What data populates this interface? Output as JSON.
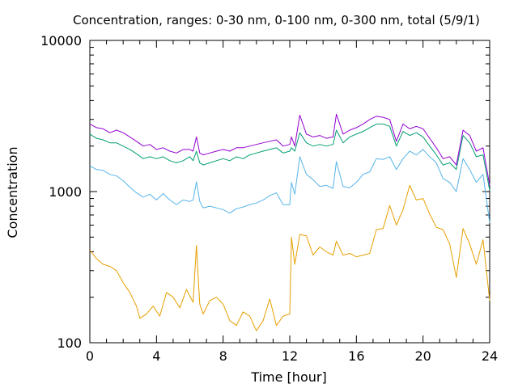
{
  "chart_data": {
    "type": "line",
    "title": "Concentration, ranges: 0-30 nm, 0-100 nm, 0-300 nm, total (5/9/1)",
    "xlabel": "Time [hour]",
    "ylabel": "Concentration",
    "xlim": [
      0,
      24
    ],
    "ylim": [
      100,
      10000
    ],
    "yscale": "log",
    "grid": false,
    "legend": "none",
    "xticks": [
      0,
      4,
      8,
      12,
      16,
      20,
      24
    ],
    "xtick_labels": [
      "0",
      "4",
      "8",
      "12",
      "16",
      "20",
      "24"
    ],
    "yticks": [
      100,
      1000,
      10000
    ],
    "ytick_labels": [
      "100",
      "1000",
      "10000"
    ],
    "series": [
      {
        "color": "#e69f00",
        "points": [
          [
            0,
            410
          ],
          [
            0.4,
            360
          ],
          [
            0.8,
            330
          ],
          [
            1.2,
            320
          ],
          [
            1.6,
            300
          ],
          [
            2.0,
            250
          ],
          [
            2.4,
            215
          ],
          [
            2.8,
            175
          ],
          [
            3.0,
            145
          ],
          [
            3.4,
            155
          ],
          [
            3.8,
            175
          ],
          [
            4.2,
            150
          ],
          [
            4.6,
            215
          ],
          [
            5.0,
            200
          ],
          [
            5.4,
            170
          ],
          [
            5.8,
            225
          ],
          [
            6.2,
            185
          ],
          [
            6.4,
            440
          ],
          [
            6.6,
            180
          ],
          [
            6.8,
            155
          ],
          [
            7.2,
            190
          ],
          [
            7.6,
            200
          ],
          [
            8.0,
            180
          ],
          [
            8.4,
            140
          ],
          [
            8.8,
            130
          ],
          [
            9.2,
            160
          ],
          [
            9.6,
            150
          ],
          [
            10.0,
            120
          ],
          [
            10.4,
            140
          ],
          [
            10.8,
            195
          ],
          [
            11.2,
            130
          ],
          [
            11.6,
            150
          ],
          [
            12.0,
            155
          ],
          [
            12.1,
            500
          ],
          [
            12.3,
            330
          ],
          [
            12.6,
            520
          ],
          [
            13.0,
            510
          ],
          [
            13.4,
            380
          ],
          [
            13.8,
            430
          ],
          [
            14.2,
            400
          ],
          [
            14.6,
            380
          ],
          [
            14.8,
            470
          ],
          [
            15.2,
            380
          ],
          [
            15.6,
            390
          ],
          [
            16.0,
            370
          ],
          [
            16.4,
            380
          ],
          [
            16.8,
            390
          ],
          [
            17.2,
            560
          ],
          [
            17.6,
            570
          ],
          [
            18.0,
            810
          ],
          [
            18.4,
            600
          ],
          [
            18.8,
            760
          ],
          [
            19.2,
            1100
          ],
          [
            19.6,
            880
          ],
          [
            20.0,
            900
          ],
          [
            20.4,
            710
          ],
          [
            20.8,
            580
          ],
          [
            21.2,
            560
          ],
          [
            21.6,
            450
          ],
          [
            22.0,
            270
          ],
          [
            22.4,
            570
          ],
          [
            22.8,
            450
          ],
          [
            23.2,
            330
          ],
          [
            23.6,
            480
          ],
          [
            24.0,
            190
          ]
        ]
      },
      {
        "color": "#56b4e9",
        "points": [
          [
            0,
            1480
          ],
          [
            0.4,
            1400
          ],
          [
            0.8,
            1380
          ],
          [
            1.2,
            1300
          ],
          [
            1.6,
            1270
          ],
          [
            2.0,
            1180
          ],
          [
            2.4,
            1070
          ],
          [
            2.8,
            980
          ],
          [
            3.2,
            920
          ],
          [
            3.6,
            960
          ],
          [
            4.0,
            880
          ],
          [
            4.4,
            970
          ],
          [
            4.8,
            880
          ],
          [
            5.2,
            820
          ],
          [
            5.6,
            880
          ],
          [
            6.0,
            860
          ],
          [
            6.2,
            880
          ],
          [
            6.4,
            1160
          ],
          [
            6.6,
            860
          ],
          [
            6.8,
            780
          ],
          [
            7.2,
            800
          ],
          [
            7.6,
            780
          ],
          [
            8.0,
            760
          ],
          [
            8.4,
            720
          ],
          [
            8.8,
            770
          ],
          [
            9.2,
            790
          ],
          [
            9.6,
            820
          ],
          [
            10.0,
            840
          ],
          [
            10.4,
            880
          ],
          [
            10.8,
            940
          ],
          [
            11.2,
            980
          ],
          [
            11.6,
            820
          ],
          [
            12.0,
            820
          ],
          [
            12.1,
            1150
          ],
          [
            12.3,
            960
          ],
          [
            12.6,
            1700
          ],
          [
            13.0,
            1300
          ],
          [
            13.4,
            1200
          ],
          [
            13.8,
            1080
          ],
          [
            14.2,
            1100
          ],
          [
            14.6,
            1050
          ],
          [
            14.8,
            1580
          ],
          [
            15.2,
            1080
          ],
          [
            15.6,
            1060
          ],
          [
            16.0,
            1150
          ],
          [
            16.4,
            1300
          ],
          [
            16.8,
            1350
          ],
          [
            17.2,
            1650
          ],
          [
            17.6,
            1630
          ],
          [
            18.0,
            1700
          ],
          [
            18.4,
            1400
          ],
          [
            18.8,
            1650
          ],
          [
            19.2,
            1850
          ],
          [
            19.6,
            1750
          ],
          [
            20.0,
            1900
          ],
          [
            20.4,
            1700
          ],
          [
            20.8,
            1550
          ],
          [
            21.2,
            1220
          ],
          [
            21.6,
            1150
          ],
          [
            22.0,
            1000
          ],
          [
            22.4,
            1650
          ],
          [
            22.8,
            1400
          ],
          [
            23.2,
            1150
          ],
          [
            23.6,
            1300
          ],
          [
            24.0,
            620
          ]
        ]
      },
      {
        "color": "#009e73",
        "points": [
          [
            0,
            2400
          ],
          [
            0.4,
            2250
          ],
          [
            0.8,
            2200
          ],
          [
            1.2,
            2100
          ],
          [
            1.6,
            2100
          ],
          [
            2.0,
            2000
          ],
          [
            2.4,
            1900
          ],
          [
            2.8,
            1780
          ],
          [
            3.2,
            1650
          ],
          [
            3.6,
            1700
          ],
          [
            4.0,
            1650
          ],
          [
            4.4,
            1700
          ],
          [
            4.8,
            1600
          ],
          [
            5.2,
            1550
          ],
          [
            5.6,
            1600
          ],
          [
            6.0,
            1700
          ],
          [
            6.2,
            1600
          ],
          [
            6.4,
            1850
          ],
          [
            6.6,
            1550
          ],
          [
            6.8,
            1500
          ],
          [
            7.2,
            1550
          ],
          [
            7.6,
            1600
          ],
          [
            8.0,
            1650
          ],
          [
            8.4,
            1600
          ],
          [
            8.8,
            1700
          ],
          [
            9.2,
            1650
          ],
          [
            9.6,
            1750
          ],
          [
            10.0,
            1800
          ],
          [
            10.4,
            1850
          ],
          [
            10.8,
            1900
          ],
          [
            11.2,
            1950
          ],
          [
            11.6,
            1800
          ],
          [
            12.0,
            1850
          ],
          [
            12.1,
            1950
          ],
          [
            12.3,
            1850
          ],
          [
            12.6,
            2450
          ],
          [
            13.0,
            2100
          ],
          [
            13.4,
            2000
          ],
          [
            13.8,
            2050
          ],
          [
            14.2,
            2000
          ],
          [
            14.6,
            2050
          ],
          [
            14.8,
            2550
          ],
          [
            15.2,
            2100
          ],
          [
            15.6,
            2300
          ],
          [
            16.0,
            2400
          ],
          [
            16.4,
            2500
          ],
          [
            16.8,
            2650
          ],
          [
            17.2,
            2800
          ],
          [
            17.6,
            2800
          ],
          [
            18.0,
            2700
          ],
          [
            18.4,
            2000
          ],
          [
            18.8,
            2500
          ],
          [
            19.2,
            2350
          ],
          [
            19.6,
            2450
          ],
          [
            20.0,
            2300
          ],
          [
            20.4,
            2000
          ],
          [
            20.8,
            1750
          ],
          [
            21.2,
            1500
          ],
          [
            21.6,
            1550
          ],
          [
            22.0,
            1400
          ],
          [
            22.4,
            2350
          ],
          [
            22.8,
            2100
          ],
          [
            23.2,
            1700
          ],
          [
            23.6,
            1750
          ],
          [
            24.0,
            1020
          ]
        ]
      },
      {
        "color": "#9400d3",
        "points": [
          [
            0,
            2800
          ],
          [
            0.4,
            2650
          ],
          [
            0.8,
            2600
          ],
          [
            1.2,
            2450
          ],
          [
            1.6,
            2550
          ],
          [
            2.0,
            2450
          ],
          [
            2.4,
            2300
          ],
          [
            2.8,
            2150
          ],
          [
            3.2,
            2000
          ],
          [
            3.6,
            2050
          ],
          [
            4.0,
            1900
          ],
          [
            4.4,
            1950
          ],
          [
            4.8,
            1850
          ],
          [
            5.2,
            1800
          ],
          [
            5.6,
            1900
          ],
          [
            6.0,
            1900
          ],
          [
            6.2,
            1850
          ],
          [
            6.4,
            2300
          ],
          [
            6.6,
            1800
          ],
          [
            6.8,
            1750
          ],
          [
            7.2,
            1800
          ],
          [
            7.6,
            1850
          ],
          [
            8.0,
            1900
          ],
          [
            8.4,
            1850
          ],
          [
            8.8,
            1950
          ],
          [
            9.2,
            1950
          ],
          [
            9.6,
            2000
          ],
          [
            10.0,
            2050
          ],
          [
            10.4,
            2100
          ],
          [
            10.8,
            2150
          ],
          [
            11.2,
            2200
          ],
          [
            11.6,
            2000
          ],
          [
            12.0,
            2050
          ],
          [
            12.1,
            2300
          ],
          [
            12.3,
            2000
          ],
          [
            12.6,
            3200
          ],
          [
            13.0,
            2400
          ],
          [
            13.4,
            2300
          ],
          [
            13.8,
            2350
          ],
          [
            14.2,
            2250
          ],
          [
            14.6,
            2300
          ],
          [
            14.8,
            3250
          ],
          [
            15.2,
            2400
          ],
          [
            15.6,
            2550
          ],
          [
            16.0,
            2650
          ],
          [
            16.4,
            2800
          ],
          [
            16.8,
            3000
          ],
          [
            17.2,
            3150
          ],
          [
            17.6,
            3100
          ],
          [
            18.0,
            3000
          ],
          [
            18.4,
            2150
          ],
          [
            18.8,
            2800
          ],
          [
            19.2,
            2600
          ],
          [
            19.6,
            2700
          ],
          [
            20.0,
            2600
          ],
          [
            20.4,
            2250
          ],
          [
            20.8,
            1950
          ],
          [
            21.2,
            1650
          ],
          [
            21.6,
            1700
          ],
          [
            22.0,
            1500
          ],
          [
            22.4,
            2550
          ],
          [
            22.8,
            2350
          ],
          [
            23.2,
            1850
          ],
          [
            23.6,
            1950
          ],
          [
            24.0,
            1100
          ]
        ]
      }
    ]
  }
}
